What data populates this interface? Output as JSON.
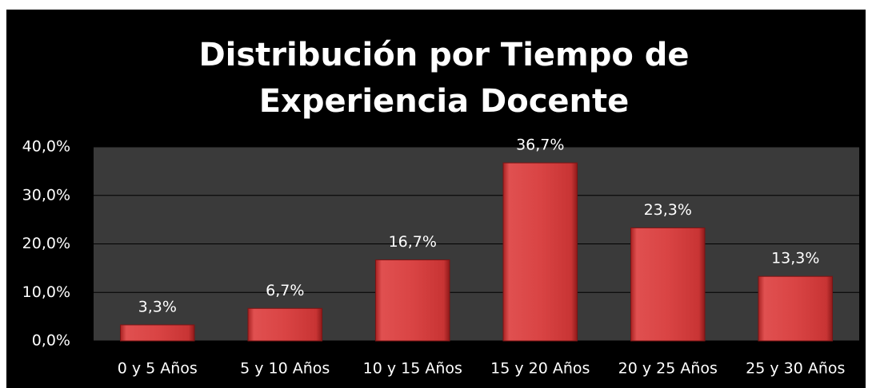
{
  "chart_data": {
    "type": "bar",
    "title": "Distribución por Tiempo de Experiencia Docente",
    "categories": [
      "0 y 5 Años",
      "5 y 10 Años",
      "10 y 15 Años",
      "15 y 20 Años",
      "20 y 25 Años",
      "25 y 30 Años"
    ],
    "values": [
      3.3,
      6.7,
      16.7,
      36.7,
      23.3,
      13.3
    ],
    "value_labels": [
      "3,3%",
      "6,7%",
      "16,7%",
      "36,7%",
      "23,3%",
      "13,3%"
    ],
    "color": "#d94444",
    "ylim": [
      0,
      40
    ],
    "yticks": [
      {
        "value": 0,
        "label": "0,0%"
      },
      {
        "value": 10,
        "label": "10,0%"
      },
      {
        "value": 20,
        "label": "20,0%"
      },
      {
        "value": 30,
        "label": "30,0%"
      },
      {
        "value": 40,
        "label": "40,0%"
      }
    ],
    "grid": true
  }
}
